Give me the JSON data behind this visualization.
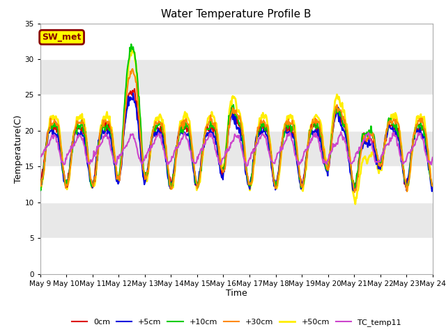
{
  "title": "Water Temperature Profile B",
  "xlabel": "Time",
  "ylabel": "Temperature(C)",
  "ylim": [
    0,
    35
  ],
  "yticks": [
    0,
    5,
    10,
    15,
    20,
    25,
    30,
    35
  ],
  "annotation_text": "SW_met",
  "annotation_color": "#8B0000",
  "background_color": "#e8e8e8",
  "plot_bg_bands": [
    {
      "ymin": 20,
      "ymax": 35,
      "color": "#d8d8d8"
    },
    {
      "ymin": 10,
      "ymax": 20,
      "color": "#d8d8d8"
    },
    {
      "ymin": 0,
      "ymax": 10,
      "color": "#d8d8d8"
    }
  ],
  "series": {
    "0cm": {
      "color": "#dd0000",
      "lw": 1.5,
      "linestyle": "solid",
      "zorder": 4
    },
    "+5cm": {
      "color": "#0000dd",
      "lw": 1.5,
      "linestyle": "solid",
      "zorder": 4
    },
    "+10cm": {
      "color": "#00cc00",
      "lw": 1.5,
      "linestyle": "solid",
      "zorder": 4
    },
    "+30cm": {
      "color": "#ff8800",
      "lw": 1.5,
      "linestyle": "solid",
      "zorder": 4
    },
    "+50cm": {
      "color": "#ffee00",
      "lw": 2.0,
      "linestyle": "solid",
      "zorder": 3
    },
    "TC_temp11": {
      "color": "#cc44cc",
      "lw": 1.5,
      "linestyle": "solid",
      "zorder": 5
    }
  },
  "legend_fontsize": 8,
  "title_fontsize": 11,
  "tick_fontsize": 7.5,
  "num_points": 600,
  "num_days": 15,
  "start_day": 9
}
